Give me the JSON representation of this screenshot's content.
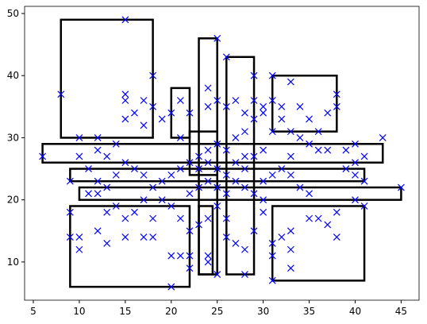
{
  "chart_data": {
    "type": "scatter",
    "x": [
      15,
      8,
      18,
      25,
      26,
      29,
      31,
      33,
      38,
      38,
      37,
      6,
      43,
      45,
      41,
      9,
      9,
      9,
      10,
      10,
      13,
      12,
      15,
      17,
      18,
      20,
      21,
      22,
      22,
      20,
      24,
      24,
      25,
      28,
      31,
      33,
      33,
      31,
      31,
      32,
      33,
      35,
      36,
      37,
      38,
      38,
      40,
      40,
      41,
      39,
      40,
      41,
      39,
      40,
      37,
      35,
      34,
      36,
      33,
      33,
      34,
      35,
      31,
      32,
      30,
      30,
      30,
      29,
      28,
      27,
      26,
      26,
      25,
      24,
      23,
      22,
      21,
      20,
      19,
      18,
      17,
      16,
      15,
      14,
      13,
      13,
      12,
      11,
      10,
      10,
      12,
      12,
      13,
      14,
      15,
      15,
      15,
      16,
      17,
      17,
      18,
      19,
      20,
      21,
      22,
      21,
      24,
      24,
      25,
      26,
      27,
      28,
      29,
      29,
      30,
      30,
      31,
      32,
      32,
      34,
      35,
      36,
      33,
      31,
      28,
      27,
      25,
      24,
      23,
      22,
      21,
      20,
      19,
      18,
      17,
      16,
      15,
      14,
      12,
      11,
      25,
      26,
      27,
      28,
      29,
      27,
      28,
      26,
      24,
      23,
      22,
      29,
      30,
      28,
      26,
      25,
      24,
      23
    ],
    "y": [
      49,
      37,
      40,
      46,
      43,
      40,
      40,
      39,
      37,
      35,
      34,
      27,
      30,
      22,
      19,
      23,
      18,
      14,
      14,
      12,
      13,
      15,
      14,
      14,
      14,
      11,
      11,
      11,
      9,
      6,
      11,
      10,
      8,
      8,
      7,
      9,
      12,
      11,
      13,
      14,
      15,
      17,
      17,
      16,
      14,
      18,
      20,
      24,
      23,
      25,
      26,
      27,
      28,
      29,
      28,
      29,
      30,
      28,
      27,
      24,
      22,
      21,
      24,
      25,
      23,
      20,
      18,
      15,
      12,
      13,
      14,
      17,
      19,
      17,
      16,
      15,
      17,
      19,
      20,
      17,
      20,
      18,
      17,
      19,
      18,
      22,
      23,
      25,
      27,
      30,
      28,
      30,
      27,
      29,
      33,
      37,
      36,
      34,
      32,
      36,
      35,
      33,
      34,
      36,
      34,
      30,
      35,
      38,
      36,
      35,
      36,
      34,
      36,
      33,
      35,
      34,
      36,
      33,
      35,
      35,
      33,
      31,
      31,
      31,
      31,
      30,
      29,
      28,
      27,
      26,
      25,
      24,
      23,
      22,
      24,
      25,
      26,
      24,
      21,
      21,
      25,
      24,
      23,
      22,
      21,
      26,
      27,
      28,
      23,
      22,
      21,
      27,
      28,
      25,
      21,
      22,
      26,
      25
    ],
    "color": "#0000ff",
    "rectangles": [
      [
        8,
        30,
        18,
        49
      ],
      [
        6,
        26,
        43,
        29
      ],
      [
        9,
        23,
        41,
        25
      ],
      [
        10,
        20,
        45,
        22
      ],
      [
        9,
        6,
        22,
        19
      ],
      [
        20,
        30,
        22,
        38
      ],
      [
        23,
        8,
        25,
        46
      ],
      [
        26,
        8,
        29,
        43
      ],
      [
        31,
        31,
        38,
        40
      ],
      [
        31,
        7,
        41,
        19
      ],
      [
        22,
        24,
        25,
        31
      ],
      [
        23,
        8,
        24.5,
        19
      ]
    ],
    "rect_color": "#000000",
    "xlim": [
      4.05,
      46.95
    ],
    "ylim": [
      3.85,
      51.15
    ],
    "xticks": [
      5,
      10,
      15,
      20,
      25,
      30,
      35,
      40,
      45
    ],
    "yticks": [
      10,
      20,
      30,
      40,
      50
    ]
  }
}
